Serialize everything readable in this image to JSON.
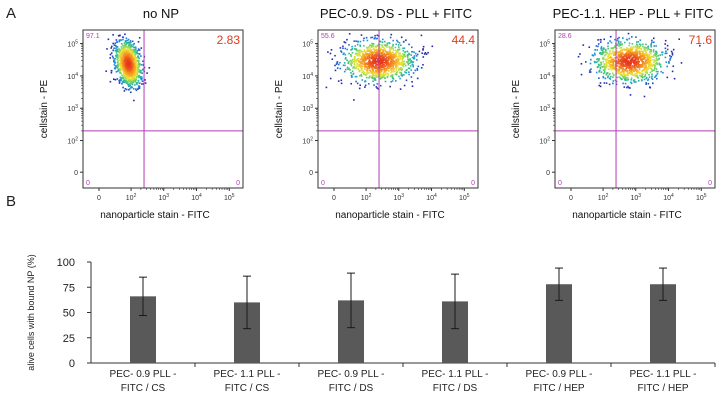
{
  "panel_a_label": "A",
  "panel_b_label": "B",
  "chart_data": [
    {
      "type": "scatter",
      "subtype": "flow-cytometry-density",
      "title": "no NP",
      "xlabel": "nanoparticle stain - FITC",
      "ylabel": "cellstain - PE",
      "x_ticks": [
        "0",
        "10^2",
        "10^3",
        "10^4",
        "10^5"
      ],
      "y_ticks": [
        "0",
        "10^2",
        "10^3",
        "10^4",
        "10^5"
      ],
      "quadrant_gate": {
        "x": 250,
        "y": 200
      },
      "quadrant_values": {
        "upper_left": "97.1",
        "upper_right": "2.83",
        "lower_left": "0",
        "lower_right": "0"
      },
      "population_center": {
        "x": 60,
        "y": 25000
      }
    },
    {
      "type": "scatter",
      "subtype": "flow-cytometry-density",
      "title": "PEC-0.9. DS - PLL + FITC",
      "xlabel": "nanoparticle stain - FITC",
      "ylabel": "cellstain - PE",
      "x_ticks": [
        "0",
        "10^2",
        "10^3",
        "10^4",
        "10^5"
      ],
      "y_ticks": [
        "0",
        "10^2",
        "10^3",
        "10^4",
        "10^5"
      ],
      "quadrant_gate": {
        "x": 250,
        "y": 200
      },
      "quadrant_values": {
        "upper_left": "55.6",
        "upper_right": "44.4",
        "lower_left": "0",
        "lower_right": "0"
      },
      "population_center": {
        "x": 230,
        "y": 30000
      }
    },
    {
      "type": "scatter",
      "subtype": "flow-cytometry-density",
      "title": "PEC-1.1. HEP - PLL + FITC",
      "xlabel": "nanoparticle stain - FITC",
      "ylabel": "cellstain - PE",
      "x_ticks": [
        "0",
        "10^2",
        "10^3",
        "10^4",
        "10^5"
      ],
      "y_ticks": [
        "0",
        "10^2",
        "10^3",
        "10^4",
        "10^5"
      ],
      "quadrant_gate": {
        "x": 250,
        "y": 200
      },
      "quadrant_values": {
        "upper_left": "28.6",
        "upper_right": "71.6",
        "lower_left": "0",
        "lower_right": "0"
      },
      "population_center": {
        "x": 600,
        "y": 30000
      }
    },
    {
      "type": "bar",
      "title": "",
      "xlabel": "",
      "ylabel": "alive cells with bound NP (%)",
      "ylim": [
        0,
        100
      ],
      "yticks": [
        0,
        25,
        50,
        75,
        100
      ],
      "categories": [
        [
          "PEC- 0.9 PLL -",
          "FITC / CS"
        ],
        [
          "PEC- 1.1 PLL -",
          "FITC / CS"
        ],
        [
          "PEC- 0.9 PLL -",
          "FITC / DS"
        ],
        [
          "PEC- 1.1 PLL -",
          "FITC / DS"
        ],
        [
          "PEC- 0.9 PLL -",
          "FITC / HEP"
        ],
        [
          "PEC- 1.1 PLL -",
          "FITC / HEP"
        ]
      ],
      "values": [
        66,
        60,
        62,
        61,
        78,
        78
      ],
      "errors": [
        19,
        26,
        27,
        27,
        16,
        16
      ],
      "bar_color": "#595959",
      "error_color": "#1a1a1a"
    }
  ],
  "colors": {
    "gate_line": "#b43cb4",
    "upper_right_value": "#e03c1e",
    "quadrant_small": "#b43cb4",
    "axis": "#333333"
  }
}
